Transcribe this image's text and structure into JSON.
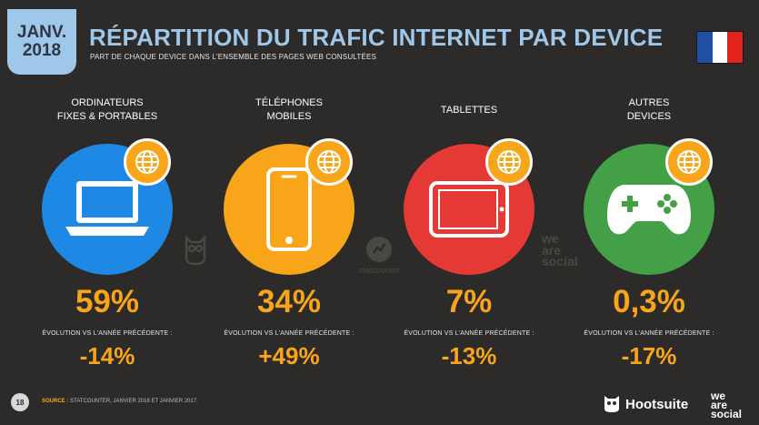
{
  "header": {
    "date_line1": "JANV.",
    "date_line2": "2018",
    "title": "RÉPARTITION DU TRAFIC INTERNET PAR DEVICE",
    "subtitle": "PART DE CHAQUE DEVICE DANS L'ENSEMBLE DES PAGES WEB CONSULTÉES",
    "flag_colors": [
      "#1e4fa3",
      "#ffffff",
      "#e2231a"
    ]
  },
  "colors": {
    "background": "#2d2b29",
    "accent": "#f9a51a",
    "title_blue": "#9fc7e9"
  },
  "devices": [
    {
      "label_line1": "ORDINATEURS",
      "label_line2": "FIXES & PORTABLES",
      "icon": "laptop-icon",
      "circle_color": "#1e88e5",
      "percent": "59%",
      "evolution_label": "ÉVOLUTION VS L'ANNÉE PRÉCÉDENTE :",
      "evolution_value": "-14%"
    },
    {
      "label_line1": "TÉLÉPHONES",
      "label_line2": "MOBILES",
      "icon": "smartphone-icon",
      "circle_color": "#f9a51a",
      "percent": "34%",
      "evolution_label": "ÉVOLUTION VS L'ANNÉE PRÉCÉDENTE :",
      "evolution_value": "+49%"
    },
    {
      "label_line1": "TABLETTES",
      "label_line2": "",
      "icon": "tablet-icon",
      "circle_color": "#e53935",
      "percent": "7%",
      "evolution_label": "ÉVOLUTION VS L'ANNÉE PRÉCÉDENTE :",
      "evolution_value": "-13%"
    },
    {
      "label_line1": "AUTRES",
      "label_line2": "DEVICES",
      "icon": "gamepad-icon",
      "circle_color": "#43a047",
      "percent": "0,3%",
      "evolution_label": "ÉVOLUTION VS L'ANNÉE PRÉCÉDENTE :",
      "evolution_value": "-17%"
    }
  ],
  "watermarks": {
    "statcounter": "statcounter",
    "we": "we",
    "are": "are",
    "social": "social"
  },
  "footer": {
    "page_number": "18",
    "source_label": "SOURCE :",
    "source_text": "STATCOUNTER, JANVIER 2018 ET JANVIER 2017.",
    "hootsuite": "Hootsuite",
    "logo_we": "we",
    "logo_are": "are",
    "logo_social": "social"
  }
}
